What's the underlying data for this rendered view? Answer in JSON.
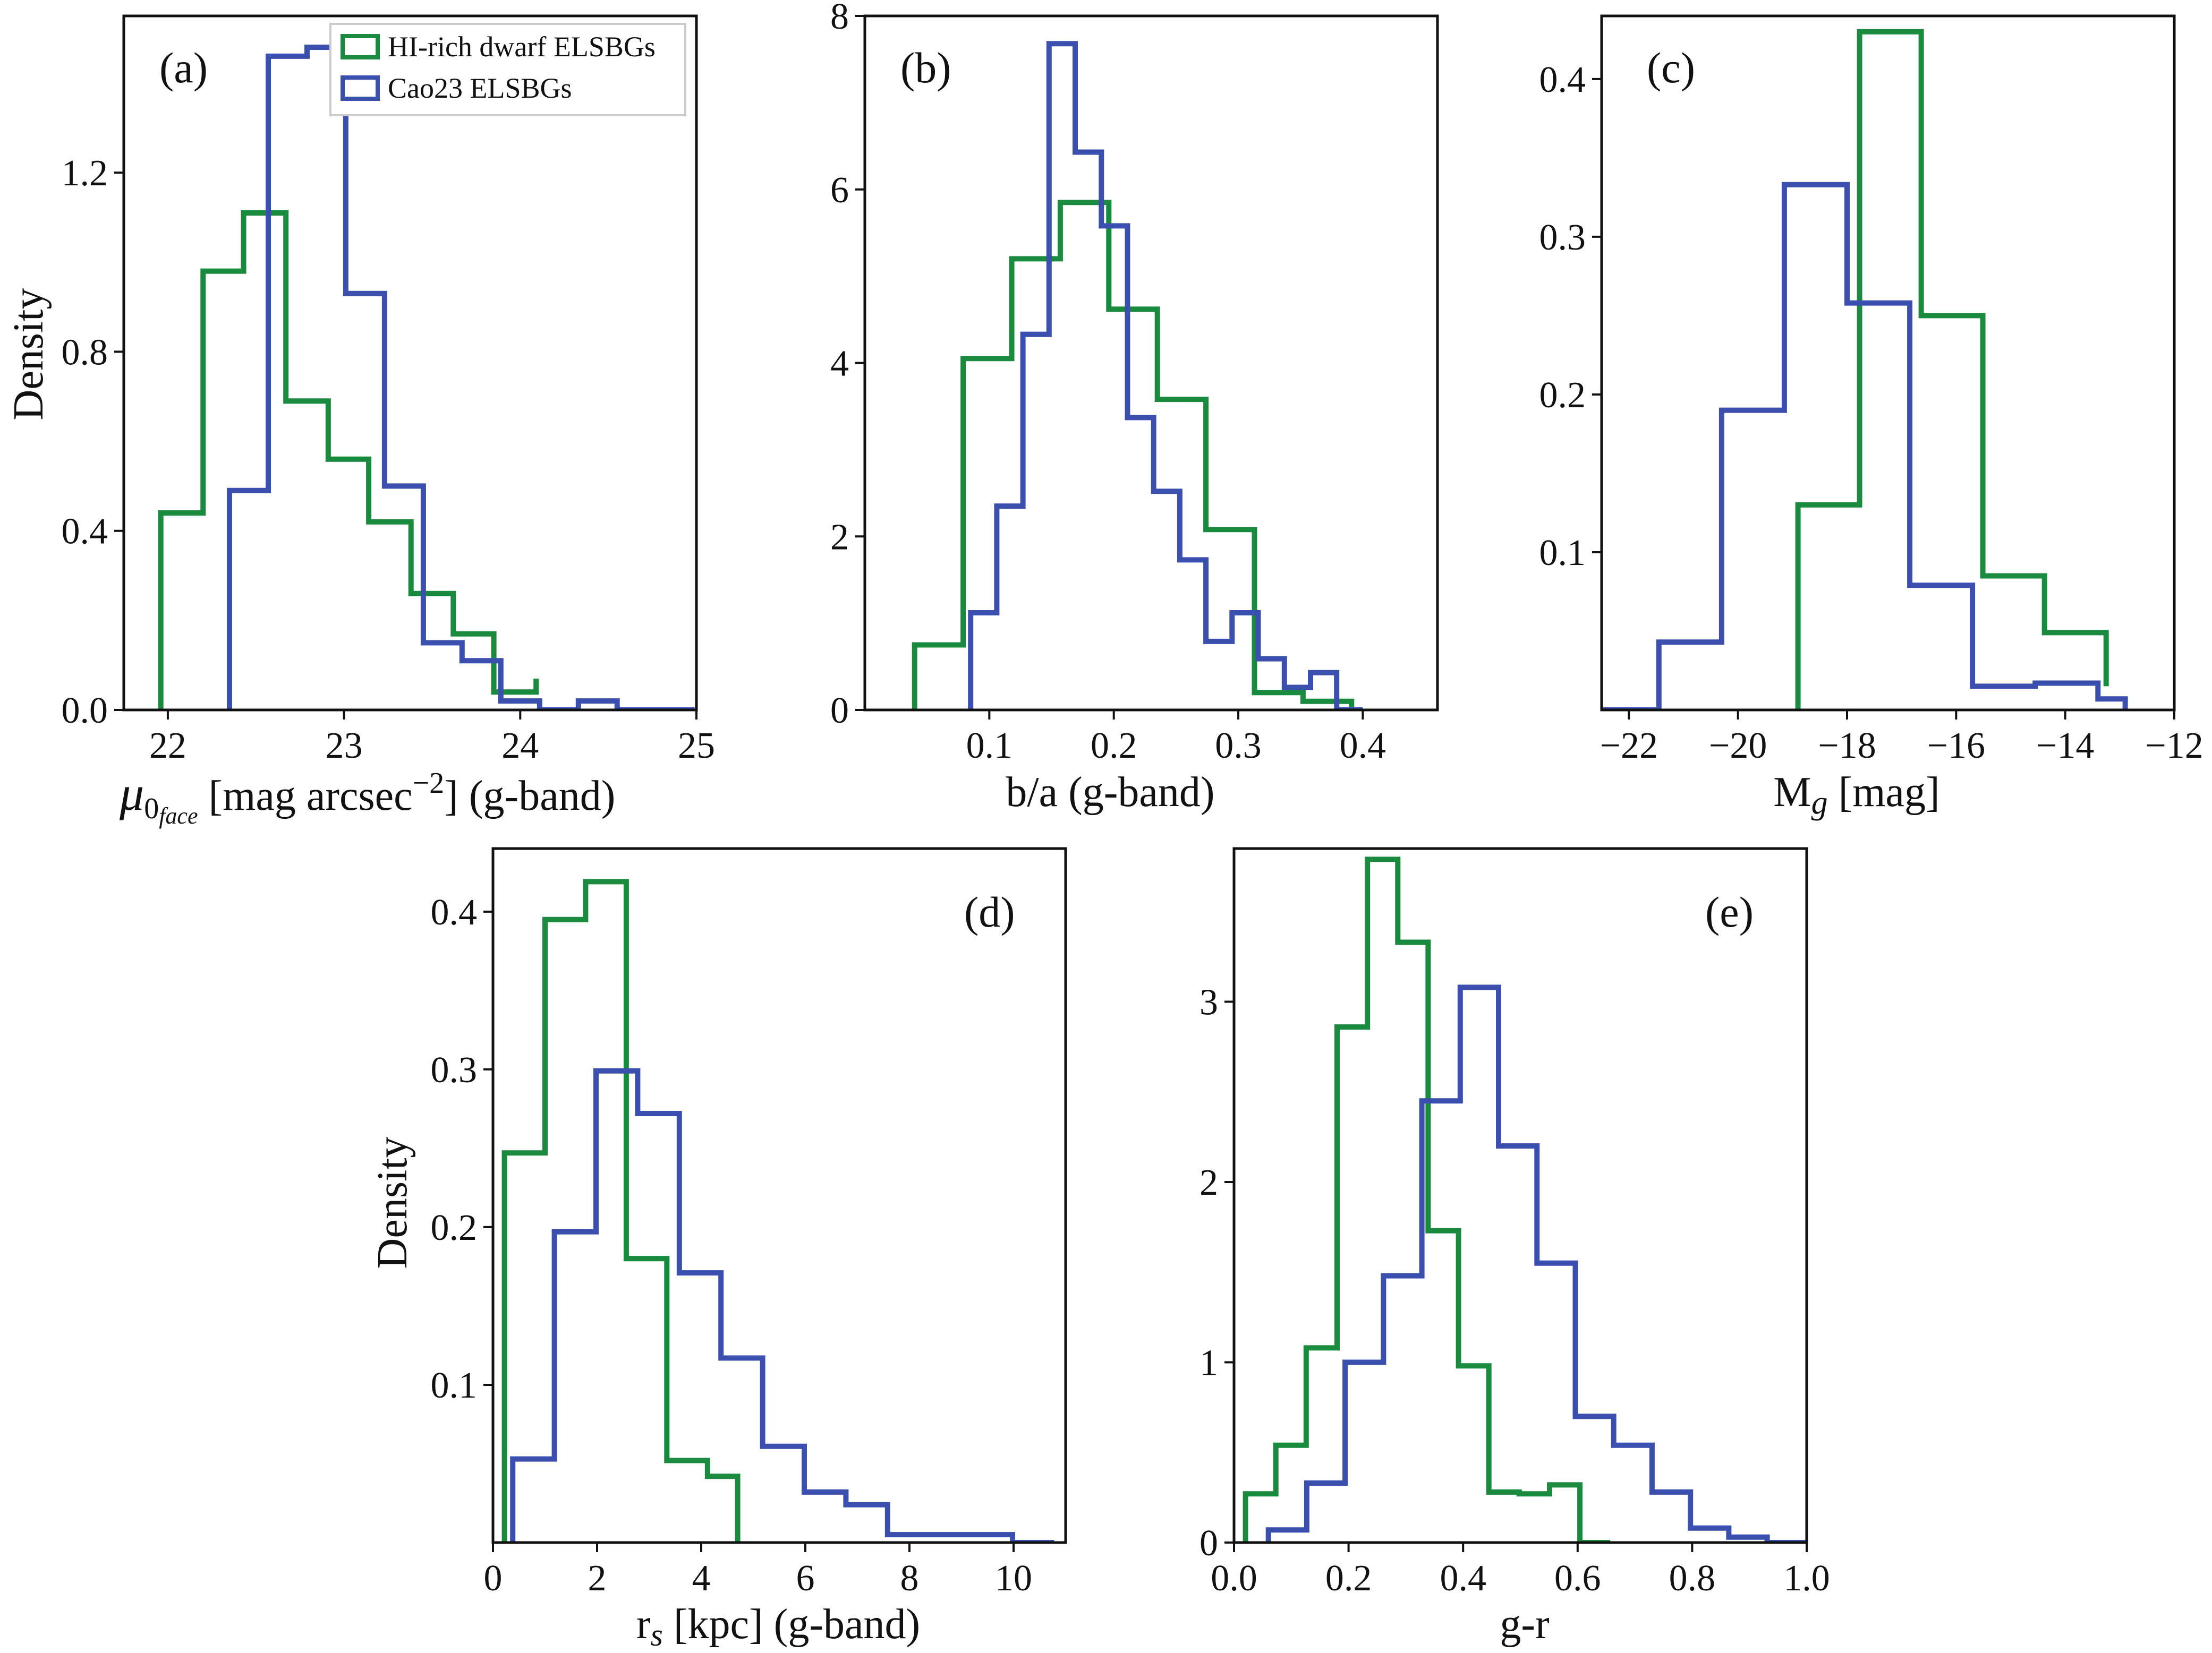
{
  "colors": {
    "green": "#1a8a3e",
    "blue": "#3a4fae"
  },
  "legend": [
    {
      "label": "HI-rich dwarf ELSBGs",
      "color": "#1a8a3e"
    },
    {
      "label": "Cao23 ELSBGs",
      "color": "#3a4fae"
    }
  ],
  "chart_data": [
    {
      "type": "histogram",
      "panel": "(a)",
      "xlabel": "μ0face [mag arcsec−2] (g-band)",
      "ylabel": "Density",
      "xlim": [
        21.75,
        25.0
      ],
      "ylim": [
        0,
        1.55
      ],
      "xticks": [
        22,
        23,
        24,
        25
      ],
      "yticks": [
        0.0,
        0.4,
        0.8,
        1.2
      ],
      "ytick_labels": [
        "0.0",
        "0.4",
        "0.8",
        "1.2"
      ],
      "series": [
        {
          "name": "HI-rich dwarf ELSBGs",
          "color": "#1a8a3e",
          "edges": [
            21.96,
            22.2,
            22.43,
            22.67,
            22.91,
            23.14,
            23.38,
            23.62,
            23.85,
            24.09
          ],
          "values": [
            0.44,
            0.98,
            1.11,
            0.69,
            0.56,
            0.42,
            0.26,
            0.17,
            0.04,
            0.07
          ]
        },
        {
          "name": "Cao23 ELSBGs",
          "color": "#3a4fae",
          "edges": [
            22.35,
            22.57,
            22.79,
            23.01,
            23.23,
            23.45,
            23.67,
            23.89,
            24.11,
            24.33,
            24.55,
            24.77,
            24.99
          ],
          "values": [
            0.49,
            1.46,
            1.48,
            0.93,
            0.5,
            0.15,
            0.11,
            0.02,
            0.0,
            0.02,
            0.0,
            0.0
          ]
        }
      ]
    },
    {
      "type": "histogram",
      "panel": "(b)",
      "xlabel": "b/a (g-band)",
      "ylabel": "",
      "xlim": [
        0.0,
        0.46
      ],
      "ylim": [
        0,
        8
      ],
      "xticks": [
        0.1,
        0.2,
        0.3,
        0.4
      ],
      "yticks": [
        0,
        2,
        4,
        6,
        8
      ],
      "series": [
        {
          "name": "HI-rich dwarf ELSBGs",
          "color": "#1a8a3e",
          "edges": [
            0.04,
            0.079,
            0.118,
            0.157,
            0.196,
            0.235,
            0.274,
            0.313,
            0.352,
            0.391
          ],
          "values": [
            0.75,
            4.05,
            5.2,
            5.85,
            4.62,
            3.58,
            2.08,
            0.2,
            0.1,
            0.0
          ]
        },
        {
          "name": "Cao23 ELSBGs",
          "color": "#3a4fae",
          "edges": [
            0.085,
            0.106,
            0.127,
            0.148,
            0.169,
            0.19,
            0.211,
            0.232,
            0.253,
            0.274,
            0.295,
            0.316,
            0.337,
            0.358,
            0.379,
            0.4
          ],
          "values": [
            1.12,
            2.35,
            4.33,
            7.68,
            6.43,
            5.58,
            3.37,
            2.52,
            1.73,
            0.79,
            1.12,
            0.59,
            0.26,
            0.43,
            0.0
          ]
        }
      ]
    },
    {
      "type": "histogram",
      "panel": "(c)",
      "xlabel": "Mg [mag]",
      "ylabel": "",
      "xlim": [
        -22.5,
        -12.0
      ],
      "ylim": [
        0,
        0.44
      ],
      "xticks": [
        -22,
        -20,
        -18,
        -16,
        -14,
        -12
      ],
      "xtick_labels": [
        "−22",
        "−20",
        "−18",
        "−16",
        "−14",
        "−12"
      ],
      "yticks": [
        0.1,
        0.2,
        0.3,
        0.4
      ],
      "series": [
        {
          "name": "HI-rich dwarf ELSBGs",
          "color": "#1a8a3e",
          "edges": [
            -18.9,
            -17.77,
            -16.64,
            -15.51,
            -14.38,
            -13.25
          ],
          "values": [
            0.13,
            0.43,
            0.25,
            0.085,
            0.049,
            0.015
          ]
        },
        {
          "name": "Cao23 ELSBGs",
          "color": "#3a4fae",
          "edges": [
            -22.6,
            -21.45,
            -20.3,
            -19.15,
            -18.0,
            -16.85,
            -15.7,
            -14.55,
            -13.4,
            -12.9
          ],
          "values": [
            0.0,
            0.043,
            0.19,
            0.333,
            0.258,
            0.079,
            0.015,
            0.017,
            0.007
          ]
        }
      ]
    },
    {
      "type": "histogram",
      "panel": "(d)",
      "xlabel": "rs [kpc] (g-band)",
      "ylabel": "Density",
      "xlim": [
        0,
        11.0
      ],
      "ylim": [
        0,
        0.44
      ],
      "xticks": [
        0,
        2,
        4,
        6,
        8,
        10
      ],
      "yticks": [
        0.1,
        0.2,
        0.3,
        0.4
      ],
      "series": [
        {
          "name": "HI-rich dwarf ELSBGs",
          "color": "#1a8a3e",
          "edges": [
            0.22,
            1.0,
            1.78,
            2.56,
            3.34,
            4.12,
            4.7
          ],
          "values": [
            0.247,
            0.395,
            0.419,
            0.18,
            0.052,
            0.042
          ]
        },
        {
          "name": "Cao23 ELSBGs",
          "color": "#3a4fae",
          "edges": [
            0.38,
            1.18,
            1.98,
            2.78,
            3.58,
            4.38,
            5.18,
            5.98,
            6.78,
            7.58,
            8.38,
            9.18,
            9.98,
            10.78
          ],
          "values": [
            0.053,
            0.197,
            0.299,
            0.272,
            0.171,
            0.117,
            0.061,
            0.032,
            0.024,
            0.005,
            0.005,
            0.005,
            0.0
          ]
        }
      ]
    },
    {
      "type": "histogram",
      "panel": "(e)",
      "xlabel": "g-r",
      "ylabel": "",
      "xlim": [
        0.0,
        1.0
      ],
      "ylim": [
        0,
        3.85
      ],
      "xticks": [
        0.0,
        0.2,
        0.4,
        0.6,
        0.8,
        1.0
      ],
      "xtick_labels": [
        "0.0",
        "0.2",
        "0.4",
        "0.6",
        "0.8",
        "1.0"
      ],
      "yticks": [
        0,
        1,
        2,
        3
      ],
      "series": [
        {
          "name": "HI-rich dwarf ELSBGs",
          "color": "#1a8a3e",
          "edges": [
            0.02,
            0.073,
            0.126,
            0.18,
            0.233,
            0.286,
            0.339,
            0.392,
            0.445,
            0.498,
            0.551,
            0.604,
            0.657
          ],
          "values": [
            0.27,
            0.54,
            1.08,
            2.86,
            3.79,
            3.33,
            1.73,
            0.98,
            0.28,
            0.27,
            0.32,
            0.0
          ]
        },
        {
          "name": "Cao23 ELSBGs",
          "color": "#3a4fae",
          "edges": [
            0.06,
            0.127,
            0.194,
            0.261,
            0.328,
            0.395,
            0.462,
            0.529,
            0.596,
            0.663,
            0.73,
            0.797,
            0.864,
            0.931,
            0.998
          ],
          "values": [
            0.07,
            0.33,
            1.0,
            1.48,
            2.45,
            3.08,
            2.2,
            1.55,
            0.7,
            0.54,
            0.28,
            0.08,
            0.03,
            0.0
          ]
        }
      ]
    }
  ]
}
